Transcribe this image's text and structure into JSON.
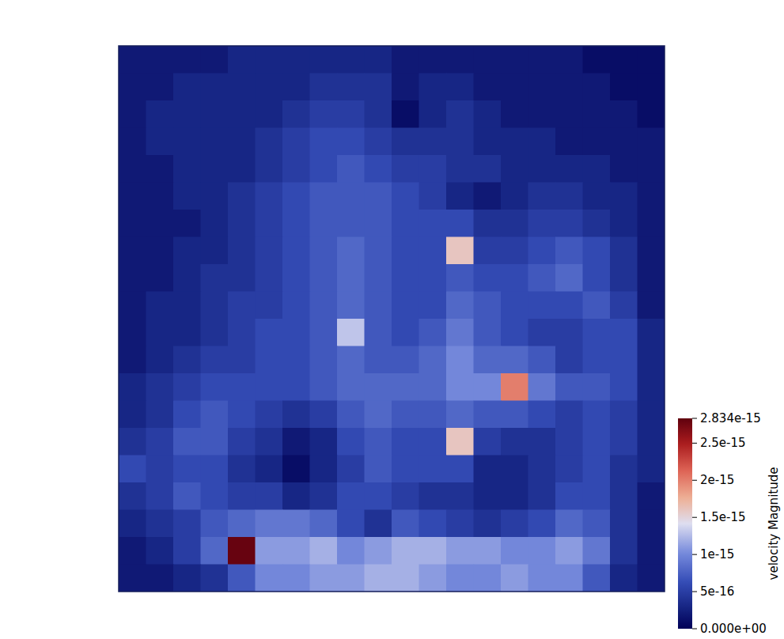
{
  "chart_data": {
    "type": "heatmap",
    "tick_labels": false,
    "colorbar_label": "velocity Magnitude",
    "colorbar_range": [
      0,
      2.834e-15
    ],
    "colorbar_ticks": [
      {
        "value": 0,
        "label": "0.000e+00"
      },
      {
        "value": 5e-16,
        "label": "5e-16"
      },
      {
        "value": 1e-15,
        "label": "1e-15"
      },
      {
        "value": 1.5e-15,
        "label": "1.5e-15"
      },
      {
        "value": 2e-15,
        "label": "2e-15"
      },
      {
        "value": 2.5e-15,
        "label": "2.5e-15"
      },
      {
        "value": 2.834e-15,
        "label": "2.834e-15"
      }
    ],
    "cells": [
      [
        2e-16,
        2e-16,
        2e-16,
        2e-16,
        3e-16,
        3e-16,
        3e-16,
        3e-16,
        3e-16,
        3e-16,
        2e-16,
        2e-16,
        2e-16,
        2e-16,
        2e-16,
        2e-16,
        2e-16,
        1e-16,
        1e-16,
        1e-16
      ],
      [
        2e-16,
        2e-16,
        3e-16,
        3e-16,
        3e-16,
        3e-16,
        3e-16,
        4e-16,
        4e-16,
        4e-16,
        2e-16,
        3e-16,
        3e-16,
        2e-16,
        2e-16,
        2e-16,
        2e-16,
        2e-16,
        1e-16,
        1e-16
      ],
      [
        2e-16,
        3e-16,
        3e-16,
        3e-16,
        3e-16,
        3e-16,
        4e-16,
        5e-16,
        5e-16,
        4e-16,
        1e-16,
        3e-16,
        4e-16,
        3e-16,
        2e-16,
        2e-16,
        2e-16,
        2e-16,
        2e-16,
        1e-16
      ],
      [
        2e-16,
        3e-16,
        3e-16,
        3e-16,
        3e-16,
        4e-16,
        5e-16,
        6e-16,
        6e-16,
        5e-16,
        4e-16,
        4e-16,
        4e-16,
        3e-16,
        3e-16,
        3e-16,
        2e-16,
        2e-16,
        2e-16,
        2e-16
      ],
      [
        2e-16,
        2e-16,
        3e-16,
        3e-16,
        3e-16,
        4e-16,
        5e-16,
        6e-16,
        7e-16,
        6e-16,
        5e-16,
        5e-16,
        4e-16,
        4e-16,
        3e-16,
        3e-16,
        3e-16,
        3e-16,
        2e-16,
        2e-16
      ],
      [
        2e-16,
        2e-16,
        3e-16,
        3e-16,
        4e-16,
        5e-16,
        6e-16,
        7e-16,
        7e-16,
        7e-16,
        6e-16,
        5e-16,
        3e-16,
        2e-16,
        3e-16,
        4e-16,
        4e-16,
        3e-16,
        3e-16,
        2e-16
      ],
      [
        2e-16,
        2e-16,
        2e-16,
        3e-16,
        4e-16,
        5e-16,
        6e-16,
        7e-16,
        7e-16,
        7e-16,
        6e-16,
        6e-16,
        6e-16,
        4e-16,
        4e-16,
        5e-16,
        5e-16,
        4e-16,
        3e-16,
        2e-16
      ],
      [
        2e-16,
        2e-16,
        3e-16,
        3e-16,
        4e-16,
        5e-16,
        6e-16,
        7e-16,
        8e-16,
        7e-16,
        6e-16,
        6e-16,
        1.6e-15,
        5e-16,
        5e-16,
        6e-16,
        7e-16,
        6e-16,
        4e-16,
        2e-16
      ],
      [
        2e-16,
        2e-16,
        3e-16,
        4e-16,
        4e-16,
        5e-16,
        6e-16,
        7e-16,
        8e-16,
        7e-16,
        6e-16,
        6e-16,
        7e-16,
        6e-16,
        6e-16,
        7e-16,
        8e-16,
        6e-16,
        4e-16,
        2e-16
      ],
      [
        2e-16,
        3e-16,
        3e-16,
        4e-16,
        5e-16,
        5e-16,
        6e-16,
        7e-16,
        8e-16,
        7e-16,
        6e-16,
        6e-16,
        8e-16,
        7e-16,
        6e-16,
        6e-16,
        6e-16,
        7e-16,
        5e-16,
        2e-16
      ],
      [
        2e-16,
        3e-16,
        3e-16,
        4e-16,
        5e-16,
        6e-16,
        6e-16,
        7e-16,
        1.3e-15,
        7e-16,
        6e-16,
        7e-16,
        9e-16,
        7e-16,
        6e-16,
        5e-16,
        5e-16,
        6e-16,
        6e-16,
        3e-16
      ],
      [
        2e-16,
        3e-16,
        4e-16,
        5e-16,
        5e-16,
        6e-16,
        6e-16,
        7e-16,
        8e-16,
        7e-16,
        7e-16,
        8e-16,
        1e-15,
        8e-16,
        8e-16,
        7e-16,
        5e-16,
        6e-16,
        6e-16,
        3e-16
      ],
      [
        3e-16,
        4e-16,
        5e-16,
        6e-16,
        6e-16,
        6e-16,
        6e-16,
        7e-16,
        8e-16,
        8e-16,
        8e-16,
        8e-16,
        1e-15,
        1e-15,
        2e-15,
        9e-16,
        7e-16,
        7e-16,
        6e-16,
        3e-16
      ],
      [
        3e-16,
        4e-16,
        6e-16,
        7e-16,
        6e-16,
        5e-16,
        4e-16,
        5e-16,
        7e-16,
        8e-16,
        7e-16,
        7e-16,
        8e-16,
        7e-16,
        7e-16,
        6e-16,
        5e-16,
        6e-16,
        5e-16,
        3e-16
      ],
      [
        4e-16,
        5e-16,
        7e-16,
        7e-16,
        5e-16,
        4e-16,
        2e-16,
        3e-16,
        6e-16,
        7e-16,
        6e-16,
        6e-16,
        1.6e-15,
        5e-16,
        4e-16,
        4e-16,
        5e-16,
        6e-16,
        5e-16,
        3e-16
      ],
      [
        6e-16,
        5e-16,
        6e-16,
        6e-16,
        4e-16,
        3e-16,
        1e-16,
        3e-16,
        5e-16,
        7e-16,
        6e-16,
        6e-16,
        6e-16,
        3e-16,
        3e-16,
        4e-16,
        5e-16,
        6e-16,
        4e-16,
        3e-16
      ],
      [
        4e-16,
        5e-16,
        7e-16,
        6e-16,
        5e-16,
        5e-16,
        3e-16,
        4e-16,
        6e-16,
        6e-16,
        5e-16,
        4e-16,
        4e-16,
        3e-16,
        3e-16,
        4e-16,
        6e-16,
        6e-16,
        4e-16,
        2e-16
      ],
      [
        3e-16,
        4e-16,
        5e-16,
        7e-16,
        8e-16,
        9e-16,
        9e-16,
        8e-16,
        6e-16,
        4e-16,
        7e-16,
        6e-16,
        5e-16,
        4e-16,
        5e-16,
        6e-16,
        8e-16,
        7e-16,
        4e-16,
        2e-16
      ],
      [
        2e-16,
        3e-16,
        5e-16,
        8e-16,
        2.8e-15,
        1.1e-15,
        1.1e-15,
        1.2e-15,
        1e-15,
        1.1e-15,
        1.2e-15,
        1.2e-15,
        1.1e-15,
        1.1e-15,
        1e-15,
        1e-15,
        1.1e-15,
        9e-16,
        4e-16,
        2e-16
      ],
      [
        2e-16,
        2e-16,
        3e-16,
        4e-16,
        7e-16,
        1e-15,
        1e-15,
        1.1e-15,
        1.1e-15,
        1.2e-15,
        1.2e-15,
        1.1e-15,
        1e-15,
        1e-15,
        1.1e-15,
        1e-15,
        1e-15,
        7e-16,
        3e-16,
        2e-16
      ]
    ]
  }
}
